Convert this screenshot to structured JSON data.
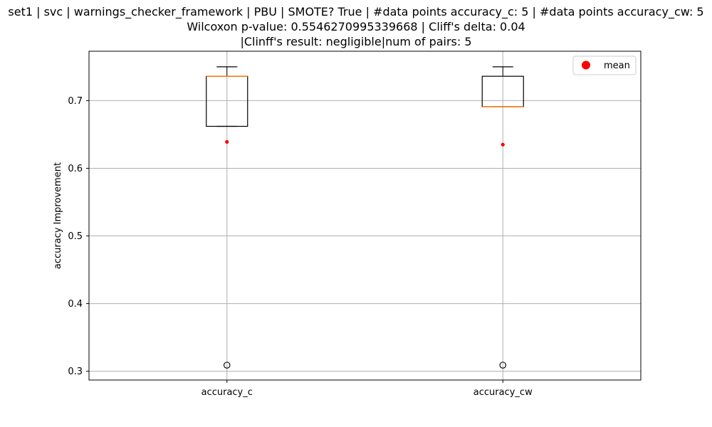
{
  "chart_data": {
    "type": "box",
    "title_lines": [
      "set1 | svc | warnings_checker_framework | PBU | SMOTE? True | #data points accuracy_c: 5 | #data points accuracy_cw: 5",
      "Wilcoxon p-value: 0.5546270995339668 | Cliff's delta: 0.04",
      "|Clinff's result: negligible|num of pairs: 5"
    ],
    "ylabel": "accuracy Improvement",
    "xlabel": "",
    "categories": [
      "accuracy_c",
      "accuracy_cw"
    ],
    "ylim": [
      0.287,
      0.773
    ],
    "yticks": [
      0.3,
      0.4,
      0.5,
      0.6,
      0.7
    ],
    "ytick_labels": [
      "0.3",
      "0.4",
      "0.5",
      "0.6",
      "0.7"
    ],
    "grid": true,
    "legend": {
      "placement": "top-right",
      "entries": [
        {
          "label": "mean",
          "color": "#ff0000"
        }
      ]
    },
    "boxes": [
      {
        "name": "accuracy_c",
        "whisker_low": 0.662,
        "q1": 0.662,
        "median": 0.736,
        "q3": 0.736,
        "whisker_high": 0.75,
        "outliers": [
          0.309
        ],
        "mean": 0.639
      },
      {
        "name": "accuracy_cw",
        "whisker_low": 0.691,
        "q1": 0.691,
        "median": 0.691,
        "q3": 0.736,
        "whisker_high": 0.75,
        "outliers": [
          0.309
        ],
        "mean": 0.635
      }
    ],
    "colors": {
      "box": "#000000",
      "median": "#ff7f0e",
      "mean": "#ff0000",
      "grid": "#b0b0b0"
    }
  }
}
